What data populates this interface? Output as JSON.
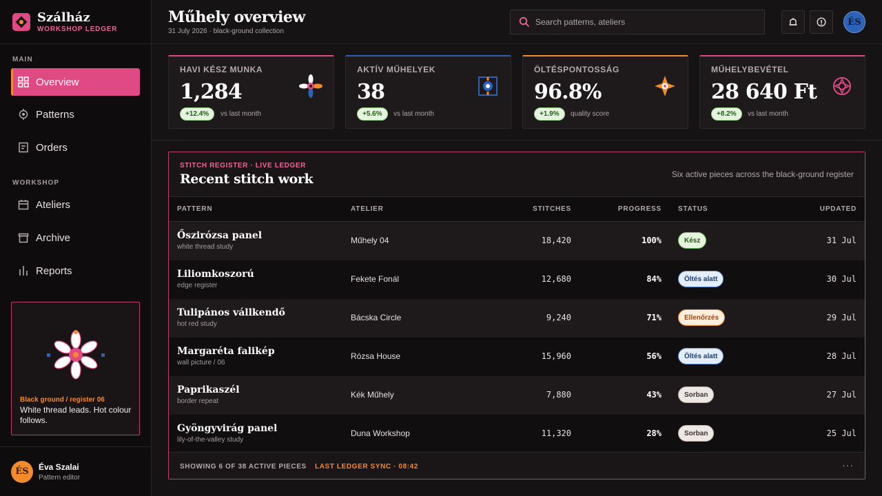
{
  "brand": {
    "name": "Szálház",
    "subtitle": "WORKSHOP LEDGER"
  },
  "sidebar": {
    "main_label": "MAIN",
    "workshop_label": "WORKSHOP",
    "main_items": [
      {
        "label": "Overview",
        "icon": "grid-icon",
        "active": true
      },
      {
        "label": "Patterns",
        "icon": "target-icon"
      },
      {
        "label": "Orders",
        "icon": "document-icon"
      }
    ],
    "workshop_items": [
      {
        "label": "Ateliers",
        "icon": "calendar-icon"
      },
      {
        "label": "Archive",
        "icon": "archive-box-icon"
      },
      {
        "label": "Reports",
        "icon": "bar-chart-icon"
      }
    ],
    "promo": {
      "caption": "Black ground / register 06",
      "text": "White thread leads. Hot colour follows."
    },
    "user": {
      "initials": "ÉS",
      "name": "Éva Szalai",
      "role": "Pattern editor"
    }
  },
  "header": {
    "title": "Műhely overview",
    "subtitle": "31 July 2026 · black-ground collection",
    "search_placeholder": "Search patterns, ateliers",
    "avatar_initials": "ÉS"
  },
  "kpis": [
    {
      "label": "HAVI KÉSZ MUNKA",
      "value": "1,284",
      "delta": "+12.4%",
      "note": "vs last month",
      "accent": "#e04a84"
    },
    {
      "label": "AKTÍV MŰHELYEK",
      "value": "38",
      "delta": "+5.6%",
      "note": "vs last month",
      "accent": "#2c62b8"
    },
    {
      "label": "ÖLTÉSPONTOSSÁG",
      "value": "96.8%",
      "delta": "+1.9%",
      "note": "quality score",
      "accent": "#f38a2c"
    },
    {
      "label": "MŰHELYBEVÉTEL",
      "value": "28 640 Ft",
      "delta": "+8.2%",
      "note": "vs last month",
      "accent": "#e04a84"
    }
  ],
  "panel": {
    "kicker": "STITCH REGISTER · LIVE LEDGER",
    "title": "Recent stitch work",
    "description": "Six active pieces across the black-ground register",
    "columns": {
      "pattern": "PATTERN",
      "atelier": "ATELIER",
      "stitches": "STITCHES",
      "progress": "PROGRESS",
      "status": "STATUS",
      "updated": "UPDATED"
    },
    "rows": [
      {
        "name": "Őszirózsa panel",
        "sub": "white thread study",
        "atelier": "Műhely 04",
        "stitches": "18,420",
        "progress": "100%",
        "status": "Kész",
        "updated": "31 Jul"
      },
      {
        "name": "Liliomkoszorú",
        "sub": "edge register",
        "atelier": "Fekete Fonál",
        "stitches": "12,680",
        "progress": "84%",
        "status": "Öltés alatt",
        "updated": "30 Jul"
      },
      {
        "name": "Tulipános vállkendő",
        "sub": "hot red study",
        "atelier": "Bácska Circle",
        "stitches": "9,240",
        "progress": "71%",
        "status": "Ellenőrzés",
        "updated": "29 Jul"
      },
      {
        "name": "Margaréta falikép",
        "sub": "wall picture / 06",
        "atelier": "Rózsa House",
        "stitches": "15,960",
        "progress": "56%",
        "status": "Öltés alatt",
        "updated": "28 Jul"
      },
      {
        "name": "Paprikaszél",
        "sub": "border repeat",
        "atelier": "Kék Műhely",
        "stitches": "7,880",
        "progress": "43%",
        "status": "Sorban",
        "updated": "27 Jul"
      },
      {
        "name": "Gyöngyvirág panel",
        "sub": "lily-of-the-valley study",
        "atelier": "Duna Workshop",
        "stitches": "11,320",
        "progress": "28%",
        "status": "Sorban",
        "updated": "25 Jul"
      }
    ],
    "footer": {
      "showing": "SHOWING 6 OF 38 ACTIVE PIECES",
      "sync": "LAST LEDGER SYNC · 08:42",
      "more": "···"
    }
  }
}
